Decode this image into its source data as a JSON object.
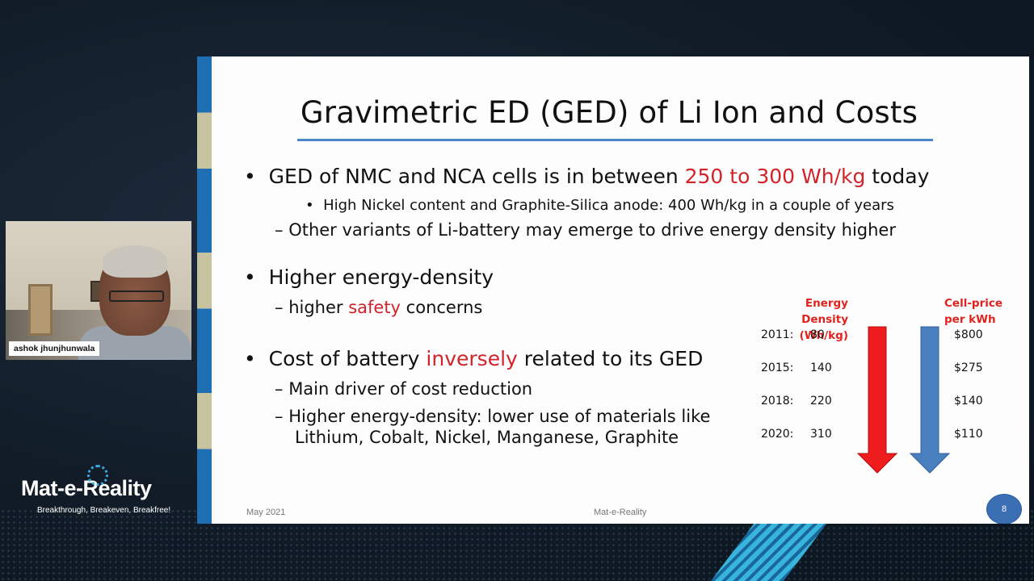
{
  "slide": {
    "title": "Gravimetric ED (GED) of Li Ion and Costs",
    "bullet1": {
      "prefix": "GED of NMC and NCA cells is in between ",
      "highlight": "250 to 300 Wh/kg",
      "suffix": " today"
    },
    "sub1": "High Nickel content and Graphite-Silica anode: 400 Wh/kg in a couple of years",
    "dash1": "Other variants of Li-battery may emerge to drive energy density higher",
    "bullet2": "Higher energy-density",
    "dash2": {
      "prefix": "higher ",
      "highlight": "safety",
      "suffix": " concerns"
    },
    "bullet3": {
      "prefix": "Cost of battery ",
      "highlight": "inversely",
      "suffix": " related to its GED"
    },
    "dash3": "Main driver of cost reduction",
    "dash4_line1": "Higher energy-density: lower use of materials like",
    "dash4_line2": "Lithium, Cobalt, Nickel, Manganese, Graphite",
    "bullet_char": "•",
    "sub_bullet_char": "•",
    "dash_char": "–",
    "footer_left": "May 2021",
    "footer_center": "Mat-e-Reality",
    "page_number": "8",
    "accent_color": "#d1232a"
  },
  "chart_data": {
    "type": "table",
    "header_left_line1": "Energy Density",
    "header_left_line2": "(Wh/kg)",
    "header_right_line1": "Cell-price",
    "header_right_line2": "per kWh",
    "rows": [
      {
        "year": "2011:",
        "density": "80",
        "price": "$800"
      },
      {
        "year": "2015:",
        "density": "140",
        "price": "$275"
      },
      {
        "year": "2018:",
        "density": "220",
        "price": "$140"
      },
      {
        "year": "2020:",
        "density": "310",
        "price": "$110"
      }
    ],
    "arrow_colors": [
      "#ee1c1c",
      "#4a7fc0"
    ]
  },
  "webcam": {
    "participant_name": "ashok jhunjhunwala"
  },
  "branding": {
    "logo_text": "Mat-e-Reality",
    "tagline": "Breakthrough, Breakeven, Breakfree!"
  }
}
